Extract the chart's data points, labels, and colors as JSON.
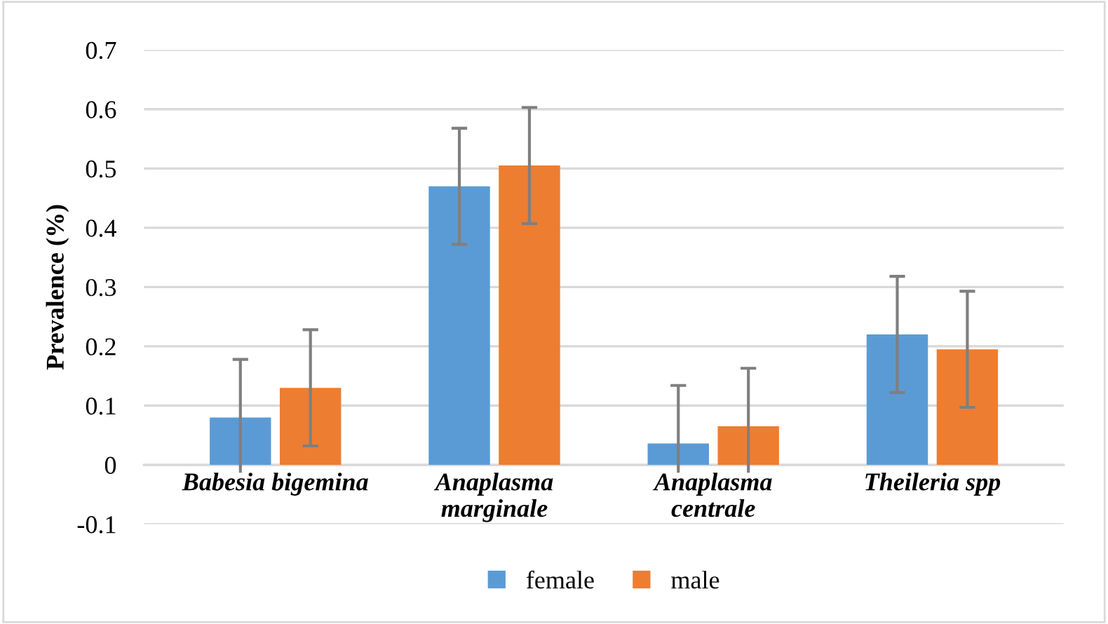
{
  "chart_data": {
    "type": "bar",
    "ylabel": "Prevalence (%)",
    "categories": [
      "Babesia bigemina",
      "Anaplasma\nmarginale",
      "Anaplasma\ncentrale",
      "Theileria spp"
    ],
    "series": [
      {
        "name": "female",
        "color": "#5b9bd5",
        "values": [
          0.08,
          0.47,
          0.036,
          0.22
        ],
        "errors": [
          0.098,
          0.098,
          0.098,
          0.098
        ]
      },
      {
        "name": "male",
        "color": "#ed7d31",
        "values": [
          0.13,
          0.505,
          0.065,
          0.195
        ],
        "errors": [
          0.098,
          0.098,
          0.098,
          0.098
        ]
      }
    ],
    "ylim": [
      -0.1,
      0.7
    ],
    "yticks": [
      -0.1,
      0,
      0.1,
      0.2,
      0.3,
      0.4,
      0.5,
      0.6,
      0.7
    ],
    "grid": "y",
    "legend": "bottom"
  }
}
